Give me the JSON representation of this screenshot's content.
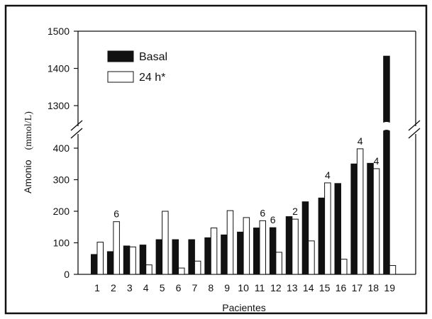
{
  "chart_data": {
    "type": "bar",
    "xlabel": "Pacientes",
    "ylabel_main": "Amonio",
    "ylabel_unit": "(mmol/L)",
    "categories": [
      "1",
      "2",
      "3",
      "4",
      "5",
      "6",
      "7",
      "8",
      "9",
      "10",
      "11",
      "12",
      "13",
      "14",
      "15",
      "16",
      "17",
      "18",
      "19"
    ],
    "series": [
      {
        "name": "Basal",
        "color": "#111111",
        "values": [
          63,
          72,
          90,
          93,
          110,
          110,
          110,
          116,
          125,
          134,
          147,
          148,
          183,
          230,
          242,
          288,
          350,
          352,
          1433
        ]
      },
      {
        "name": "24 h*",
        "color": "#ffffff",
        "values": [
          102,
          167,
          87,
          30,
          200,
          20,
          42,
          147,
          202,
          180,
          170,
          70,
          175,
          106,
          290,
          48,
          398,
          335,
          28
        ]
      }
    ],
    "annotations": [
      {
        "category": "2",
        "series": "24 h*",
        "text": "6"
      },
      {
        "category": "11",
        "series": "24 h*",
        "text": "6"
      },
      {
        "category": "12",
        "series": "Basal",
        "text": "6"
      },
      {
        "category": "13",
        "series": "24 h*",
        "text": "2"
      },
      {
        "category": "15",
        "series": "24 h*",
        "text": "4"
      },
      {
        "category": "17",
        "series": "24 h*",
        "text": "4"
      },
      {
        "category": "18",
        "series": "24 h*",
        "text": "4"
      }
    ],
    "y_axis_lower": {
      "range": [
        0,
        420
      ],
      "ticks": [
        0,
        100,
        200,
        300,
        400
      ]
    },
    "y_axis_upper": {
      "range": [
        1260,
        1500
      ],
      "ticks": [
        1300,
        1400,
        1500
      ]
    },
    "axis_break": true,
    "grid": false,
    "legend_position": "top-left"
  }
}
